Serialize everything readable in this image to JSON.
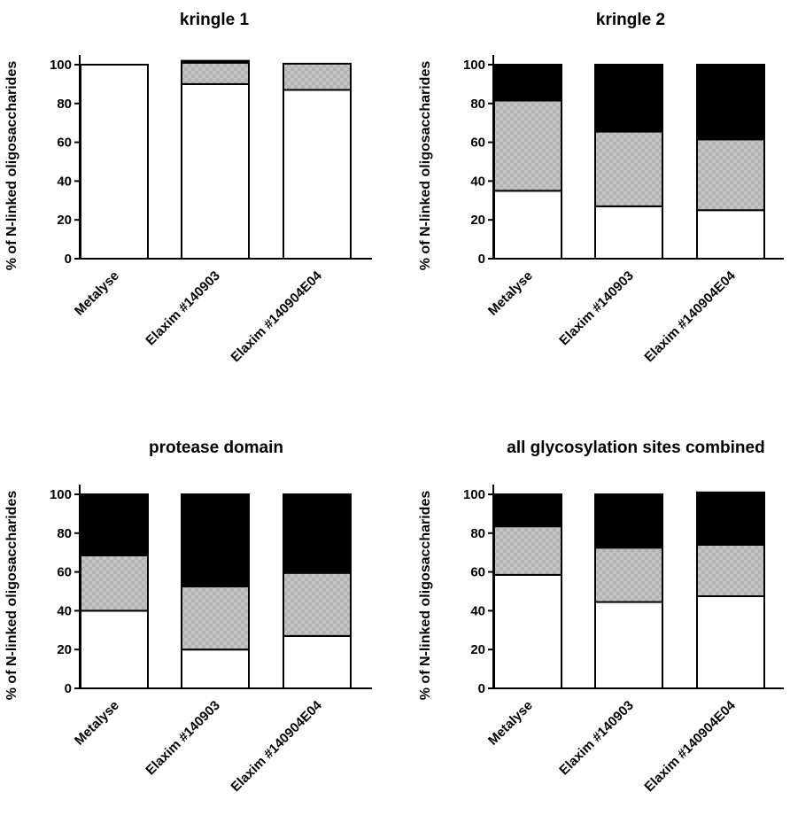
{
  "chart_data": [
    {
      "type": "bar",
      "stacked": true,
      "title": "kringle 1",
      "ylabel": "% of N-linked oligosaccharides",
      "xlabel": "",
      "ylim": [
        0,
        100
      ],
      "yticks": [
        "0",
        "20",
        "40",
        "60",
        "80",
        "100"
      ],
      "categories": [
        "Metalyse",
        "Elaxim #140903",
        "Elaxim #140904E04"
      ],
      "series": [
        {
          "name": "white",
          "values": [
            100,
            90,
            87
          ]
        },
        {
          "name": "gray",
          "values": [
            0,
            11,
            13.5
          ]
        },
        {
          "name": "black",
          "values": [
            0,
            1,
            0
          ]
        }
      ]
    },
    {
      "type": "bar",
      "stacked": true,
      "title": "kringle 2",
      "ylabel": "% of N-linked oligosaccharides",
      "xlabel": "",
      "ylim": [
        0,
        100
      ],
      "yticks": [
        "0",
        "20",
        "40",
        "60",
        "80",
        "100"
      ],
      "categories": [
        "Metalyse",
        "Elaxim #140903",
        "Elaxim #140904E04"
      ],
      "series": [
        {
          "name": "white",
          "values": [
            35,
            27,
            25
          ]
        },
        {
          "name": "gray",
          "values": [
            46.5,
            38.5,
            36.5
          ]
        },
        {
          "name": "black",
          "values": [
            18.5,
            34.5,
            38.5
          ]
        }
      ]
    },
    {
      "type": "bar",
      "stacked": true,
      "title": "protease domain",
      "ylabel": "% of N-linked oligosaccharides",
      "xlabel": "",
      "ylim": [
        0,
        100
      ],
      "yticks": [
        "0",
        "20",
        "40",
        "60",
        "80",
        "100"
      ],
      "categories": [
        "Metalyse",
        "Elaxim #140903",
        "Elaxim #140904E04"
      ],
      "series": [
        {
          "name": "white",
          "values": [
            40,
            20,
            27
          ]
        },
        {
          "name": "gray",
          "values": [
            28.5,
            32.5,
            32.5
          ]
        },
        {
          "name": "black",
          "values": [
            31.5,
            47.5,
            40.5
          ]
        }
      ]
    },
    {
      "type": "bar",
      "stacked": true,
      "title": "all glycosylation sites combined",
      "ylabel": "% of N-linked oligosaccharides",
      "xlabel": "",
      "ylim": [
        0,
        100
      ],
      "yticks": [
        "0",
        "20",
        "40",
        "60",
        "80",
        "100"
      ],
      "categories": [
        "Metalyse",
        "Elaxim #140903",
        "Elaxim #140904E04"
      ],
      "series": [
        {
          "name": "white",
          "values": [
            58.5,
            44.5,
            47.5
          ]
        },
        {
          "name": "gray",
          "values": [
            25,
            28,
            26.5
          ]
        },
        {
          "name": "black",
          "values": [
            16.5,
            27.5,
            27
          ]
        }
      ]
    }
  ],
  "colors": {
    "white": "#ffffff",
    "gray": "#b4b4b4",
    "gray_dot": "#c9c9c9",
    "black": "#000000",
    "axis": "#000000"
  }
}
